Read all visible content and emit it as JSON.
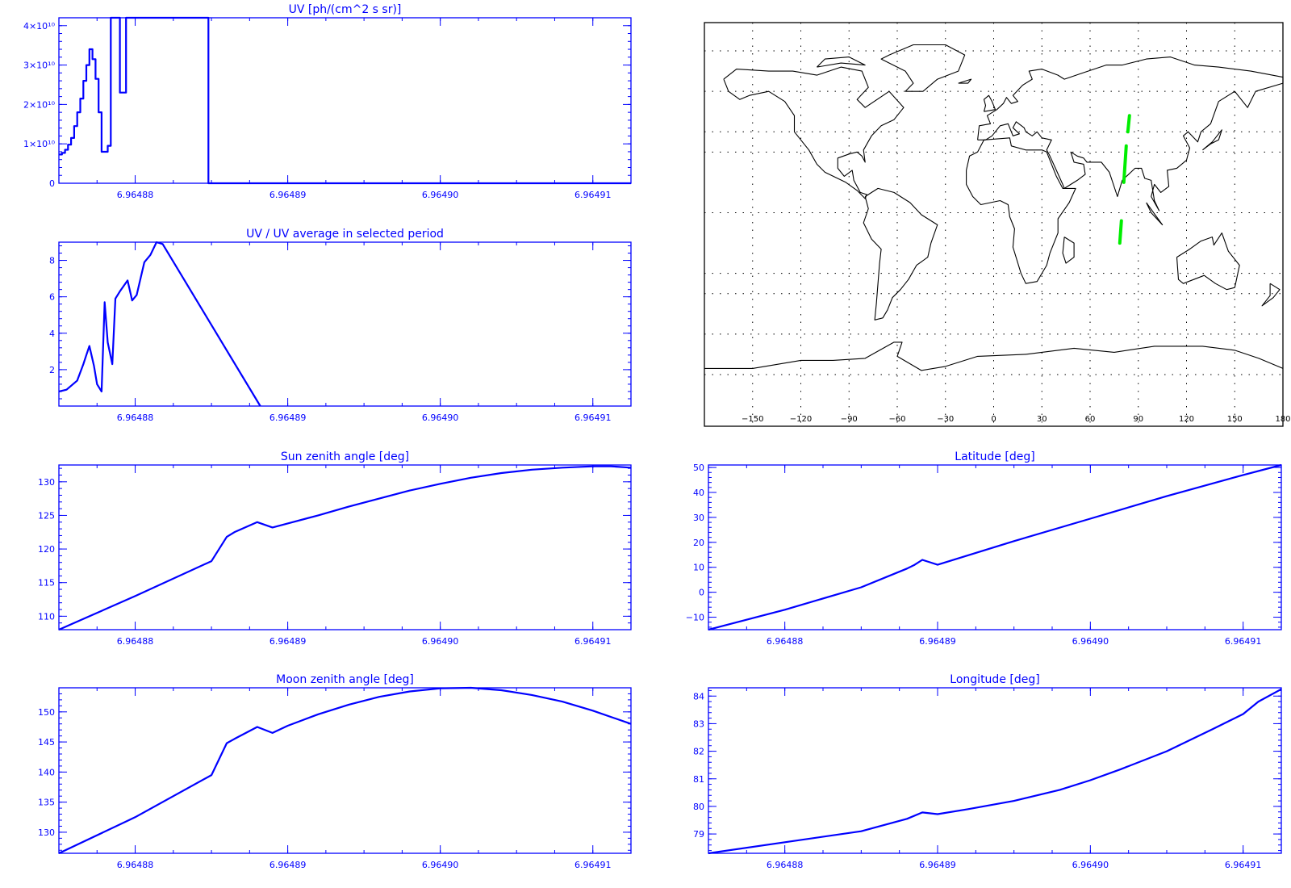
{
  "chart_data": [
    {
      "id": "uv",
      "type": "line",
      "title": "UV [ph/(cm^2 s sr)]",
      "xlim": [
        6.964875,
        6.9649125
      ],
      "ylim": [
        0,
        42000000000
      ],
      "xticks": [
        6.96488,
        6.96489,
        6.9649,
        6.96491
      ],
      "xtick_labels": [
        "6.96488",
        "6.96489",
        "6.96490",
        "6.96491"
      ],
      "yticks": [
        0,
        10000000000,
        20000000000,
        30000000000,
        40000000000
      ],
      "ytick_labels": [
        "0",
        "1×10¹⁰",
        "2×10¹⁰",
        "3×10¹⁰",
        "4×10¹⁰"
      ],
      "step": true,
      "series": [
        {
          "x": [
            6.964875,
            6.9648752,
            6.9648754,
            6.9648756,
            6.9648758,
            6.964876,
            6.9648762,
            6.9648764,
            6.9648766,
            6.9648768,
            6.964877,
            6.9648772,
            6.9648774,
            6.9648776,
            6.9648778,
            6.964878,
            6.9648782,
            6.9648784,
            6.9648786,
            6.9648788,
            6.964879,
            6.9648792,
            6.9648794,
            6.9648796,
            6.9648798,
            6.9648846,
            6.9648848
          ],
          "y": [
            7300000000,
            7700000000,
            8500000000,
            9800000000,
            11500000000,
            14500000000,
            18000000000,
            21500000000,
            26000000000,
            30000000000,
            34000000000,
            31500000000,
            26500000000,
            18000000000,
            8000000000,
            8000000000,
            9500000000,
            42000000000,
            42000000000,
            42000000000,
            23000000000,
            23000000000,
            42000000000,
            42000000000,
            42000000000,
            42000000000,
            0
          ]
        }
      ]
    },
    {
      "id": "uv_ratio",
      "type": "line",
      "title": "UV / UV average in selected period",
      "xlim": [
        6.964875,
        6.9649125
      ],
      "ylim": [
        0,
        9
      ],
      "xticks": [
        6.96488,
        6.96489,
        6.9649,
        6.96491
      ],
      "xtick_labels": [
        "6.96488",
        "6.96489",
        "6.96490",
        "6.96491"
      ],
      "yticks": [
        2,
        4,
        6,
        8
      ],
      "ytick_labels": [
        "2",
        "4",
        "6",
        "8"
      ],
      "series": [
        {
          "x": [
            6.964875,
            6.9648755,
            6.9648762,
            6.9648766,
            6.9648768,
            6.964877,
            6.9648773,
            6.9648775,
            6.9648778,
            6.964878,
            6.9648782,
            6.9648785,
            6.9648787,
            6.964879,
            6.9648795,
            6.9648798,
            6.9648801,
            6.9648806,
            6.964881,
            6.9648814,
            6.9648818,
            6.9648882
          ],
          "y": [
            0.8,
            0.9,
            1.4,
            2.3,
            2.8,
            3.3,
            2.2,
            1.2,
            0.8,
            5.7,
            3.5,
            2.3,
            5.9,
            6.3,
            6.9,
            5.8,
            6.1,
            7.9,
            8.3,
            9.0,
            8.9,
            0
          ]
        }
      ]
    },
    {
      "id": "sun_zenith",
      "type": "line",
      "title": "Sun zenith angle [deg]",
      "xlim": [
        6.964875,
        6.9649125
      ],
      "ylim": [
        108,
        132.5
      ],
      "xticks": [
        6.96488,
        6.96489,
        6.9649,
        6.96491
      ],
      "xtick_labels": [
        "6.96488",
        "6.96489",
        "6.96490",
        "6.96491"
      ],
      "yticks": [
        110,
        115,
        120,
        125,
        130
      ],
      "ytick_labels": [
        "110",
        "115",
        "120",
        "125",
        "130"
      ],
      "series": [
        {
          "x": [
            6.964875,
            6.96488,
            6.964885,
            6.964886,
            6.9648865,
            6.964888,
            6.964889,
            6.96489,
            6.964892,
            6.964894,
            6.964896,
            6.964898,
            6.9649,
            6.964902,
            6.964904,
            6.964906,
            6.964908,
            6.96491,
            6.9649112,
            6.9649125
          ],
          "y": [
            108,
            113,
            118.2,
            121.8,
            122.5,
            124.0,
            123.2,
            123.8,
            125.0,
            126.3,
            127.5,
            128.7,
            129.7,
            130.6,
            131.3,
            131.8,
            132.1,
            132.3,
            132.3,
            132.1
          ]
        }
      ]
    },
    {
      "id": "moon_zenith",
      "type": "line",
      "title": "Moon zenith angle [deg]",
      "xlim": [
        6.964875,
        6.9649125
      ],
      "ylim": [
        126.5,
        154
      ],
      "xticks": [
        6.96488,
        6.96489,
        6.9649,
        6.96491
      ],
      "xtick_labels": [
        "6.96488",
        "6.96489",
        "6.96490",
        "6.96491"
      ],
      "yticks": [
        130,
        135,
        140,
        145,
        150
      ],
      "ytick_labels": [
        "130",
        "135",
        "140",
        "145",
        "150"
      ],
      "series": [
        {
          "x": [
            6.964875,
            6.96488,
            6.964885,
            6.964886,
            6.9648865,
            6.964888,
            6.964889,
            6.96489,
            6.964892,
            6.964894,
            6.964896,
            6.964898,
            6.9649,
            6.964902,
            6.964904,
            6.964906,
            6.964908,
            6.96491,
            6.9649125
          ],
          "y": [
            126.5,
            132.5,
            139.5,
            144.8,
            145.5,
            147.5,
            146.5,
            147.7,
            149.6,
            151.2,
            152.5,
            153.4,
            153.9,
            154.0,
            153.6,
            152.8,
            151.7,
            150.2,
            148.0
          ]
        }
      ]
    },
    {
      "id": "latitude",
      "type": "line",
      "title": "Latitude [deg]",
      "xlim": [
        6.964875,
        6.9649125
      ],
      "ylim": [
        -15,
        51
      ],
      "xticks": [
        6.96488,
        6.96489,
        6.9649,
        6.96491
      ],
      "xtick_labels": [
        "6.96488",
        "6.96489",
        "6.96490",
        "6.96491"
      ],
      "yticks": [
        -10,
        0,
        10,
        20,
        30,
        40,
        50
      ],
      "ytick_labels": [
        "−10",
        "0",
        "10",
        "20",
        "30",
        "40",
        "50"
      ],
      "series": [
        {
          "x": [
            6.964875,
            6.96488,
            6.964885,
            6.964888,
            6.9648885,
            6.964889,
            6.9648895,
            6.96489,
            6.964895,
            6.9649,
            6.964905,
            6.96491,
            6.9649125
          ],
          "y": [
            -15,
            -7,
            2,
            9.5,
            11,
            13,
            12,
            11,
            20.5,
            29.5,
            38.5,
            47,
            51
          ]
        }
      ]
    },
    {
      "id": "longitude",
      "type": "line",
      "title": "Longitude [deg]",
      "xlim": [
        6.964875,
        6.9649125
      ],
      "ylim": [
        78.3,
        84.3
      ],
      "xticks": [
        6.96488,
        6.96489,
        6.9649,
        6.96491
      ],
      "xtick_labels": [
        "6.96488",
        "6.96489",
        "6.96490",
        "6.96491"
      ],
      "yticks": [
        79,
        80,
        81,
        82,
        83,
        84
      ],
      "ytick_labels": [
        "79",
        "80",
        "81",
        "82",
        "83",
        "84"
      ],
      "series": [
        {
          "x": [
            6.964875,
            6.96488,
            6.964885,
            6.964888,
            6.964889,
            6.96489,
            6.964892,
            6.964895,
            6.964898,
            6.9649,
            6.964902,
            6.964905,
            6.964908,
            6.96491,
            6.964911,
            6.9649125
          ],
          "y": [
            78.3,
            78.7,
            79.1,
            79.55,
            79.78,
            79.72,
            79.9,
            80.2,
            80.6,
            80.95,
            81.35,
            82.0,
            82.8,
            83.35,
            83.8,
            84.25
          ]
        }
      ]
    },
    {
      "id": "ground_track_map",
      "type": "map",
      "projection": "cylindrical",
      "lon_range": [
        -180,
        180
      ],
      "lat_range": [
        -90,
        90
      ],
      "lon_tick_labels": [
        "−150",
        "−120",
        "−90",
        "−60",
        "−30",
        "0",
        "30",
        "60",
        "90",
        "120",
        "150",
        "180"
      ],
      "grid": "dotted",
      "track_color": "#00dd00",
      "track_segments": [
        [
          [
            84.5,
            48
          ],
          [
            83.5,
            40
          ]
        ],
        [
          [
            82.5,
            33
          ],
          [
            81,
            15
          ]
        ],
        [
          [
            79.5,
            -4
          ],
          [
            78.5,
            -15
          ]
        ]
      ]
    }
  ],
  "colors": {
    "axes": "#0000ff",
    "map": "#000000",
    "track": "#00dd00"
  }
}
